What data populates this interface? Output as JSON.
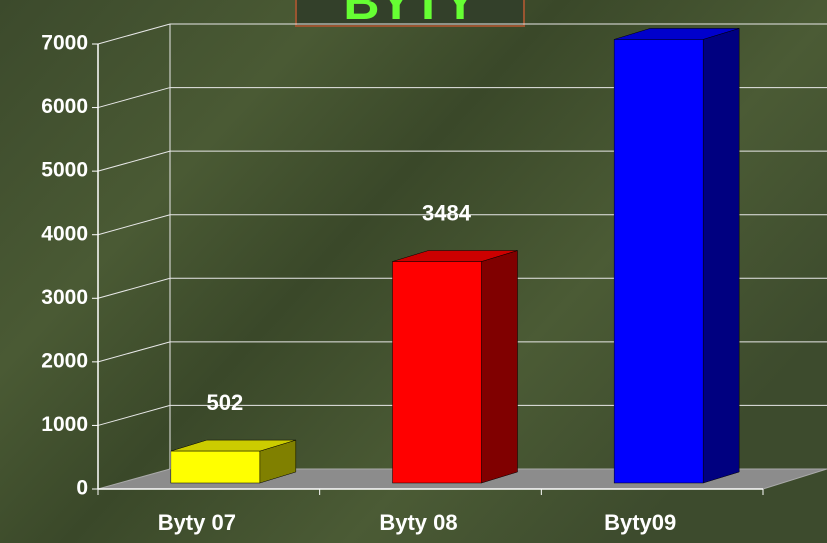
{
  "chart_data": {
    "type": "bar3d",
    "title": "BYTY",
    "categories": [
      "Byty 07",
      "Byty 08",
      "Byty09"
    ],
    "values": [
      502,
      3484,
      6978
    ],
    "colors": [
      "#ffff00",
      "#ff0000",
      "#0000ff"
    ],
    "ylim": [
      0,
      7000
    ],
    "yticks": [
      0,
      1000,
      2000,
      3000,
      4000,
      5000,
      6000,
      7000
    ],
    "grid": true
  }
}
